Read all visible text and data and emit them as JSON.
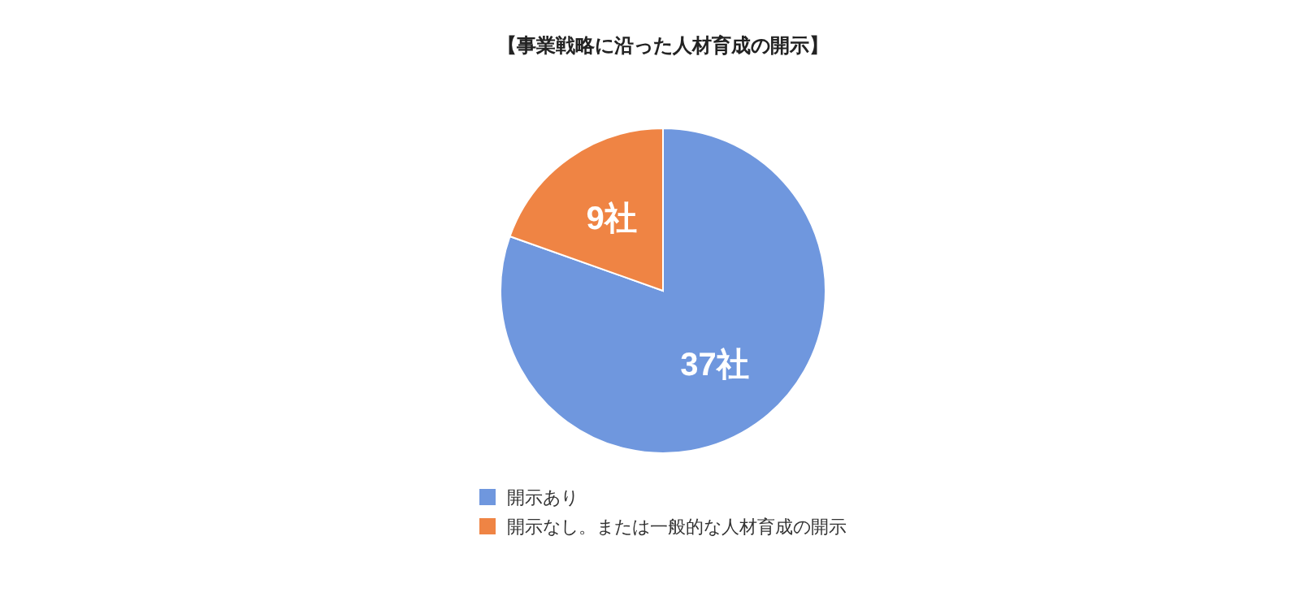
{
  "chart_data": {
    "type": "pie",
    "title": "【事業戦略に沿った人材育成の開示】",
    "categories": [
      "開示あり",
      "開示なし。または一般的な人材育成の開示"
    ],
    "values": [
      37,
      9
    ],
    "colors": [
      "#6f97de",
      "#ef8444"
    ],
    "value_labels": [
      "37社",
      "9社"
    ],
    "legend": "bottom"
  }
}
